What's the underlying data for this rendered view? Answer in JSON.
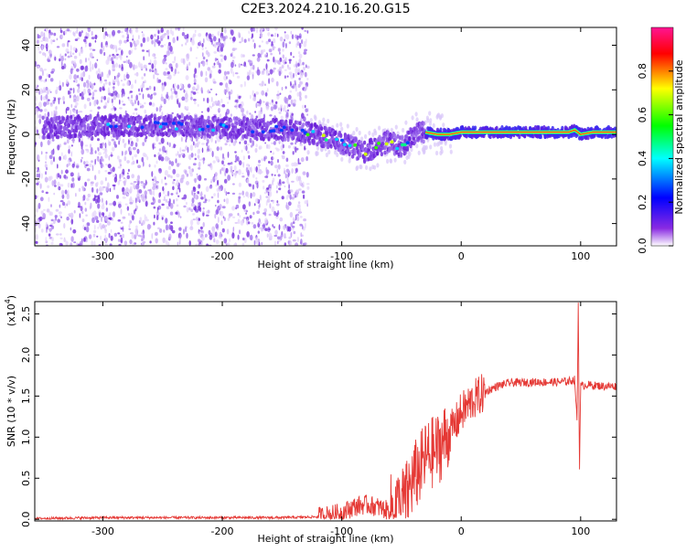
{
  "title": "C2E3.2024.210.16.20.G15",
  "chart_data": [
    {
      "type": "heatmap",
      "xlabel": "Height of straight line (km)",
      "ylabel": "Frequency (Hz)",
      "xlim": [
        -357,
        130
      ],
      "ylim": [
        -50,
        48
      ],
      "xticks": [
        -300,
        -200,
        -100,
        0,
        100
      ],
      "yticks": [
        -40,
        -20,
        0,
        20,
        40
      ],
      "colorbar": {
        "label": "Normalized spectral amplitude",
        "range": [
          0,
          1
        ],
        "ticks": [
          "0.0",
          "0.2",
          "0.4",
          "0.6",
          "0.8"
        ],
        "colors": [
          "#ffffff",
          "#8a2be2",
          "#0000ff",
          "#00ffff",
          "#00ff00",
          "#ffff00",
          "#ff0000",
          "#ff1493"
        ]
      },
      "ridge": {
        "x": [
          -350,
          -300,
          -250,
          -200,
          -150,
          -120,
          -100,
          -80,
          -60,
          -50,
          -40,
          -30,
          -20,
          -10,
          0,
          20,
          50,
          90,
          95,
          100,
          110,
          130
        ],
        "y": [
          3,
          4,
          4,
          3,
          2,
          0,
          -4,
          -8,
          -3,
          -6,
          0,
          1,
          0,
          0,
          1,
          1,
          1,
          1,
          2,
          0,
          1,
          1
        ]
      },
      "noise_extent_x": [
        -357,
        -128
      ],
      "strong_signal_start_x": -30
    },
    {
      "type": "line",
      "xlabel": "Height of straight line (km)",
      "ylabel": "SNR (10 * v/v)",
      "multiplier": "(x10",
      "multiplier_exp": "4",
      "multiplier_close": ")",
      "xlim": [
        -357,
        130
      ],
      "ylim": [
        -0.02,
        2.65
      ],
      "xticks": [
        -300,
        -200,
        -100,
        0,
        100
      ],
      "yticks": [
        "0.0",
        "0.5",
        "1.0",
        "1.5",
        "2.0",
        "2.5"
      ],
      "color": "#e53935",
      "series": [
        {
          "x": [
            -357,
            -300,
            -250,
            -200,
            -150,
            -120,
            -100,
            -90,
            -80,
            -70,
            -60,
            -50,
            -45,
            -40,
            -35,
            -30,
            -25,
            -20,
            -15,
            -10,
            -5,
            0,
            10,
            20,
            30,
            40,
            60,
            80,
            90,
            95,
            97,
            98,
            99,
            100,
            101,
            105,
            110,
            120,
            130
          ],
          "y": [
            0.01,
            0.02,
            0.02,
            0.02,
            0.02,
            0.03,
            0.08,
            0.15,
            0.18,
            0.15,
            0.1,
            0.2,
            0.3,
            0.5,
            0.6,
            0.75,
            0.8,
            0.85,
            0.95,
            1.05,
            1.15,
            1.3,
            1.45,
            1.55,
            1.62,
            1.66,
            1.67,
            1.67,
            1.68,
            1.7,
            1.2,
            2.65,
            0.55,
            1.65,
            1.62,
            1.64,
            1.63,
            1.62,
            1.62
          ]
        }
      ]
    }
  ]
}
